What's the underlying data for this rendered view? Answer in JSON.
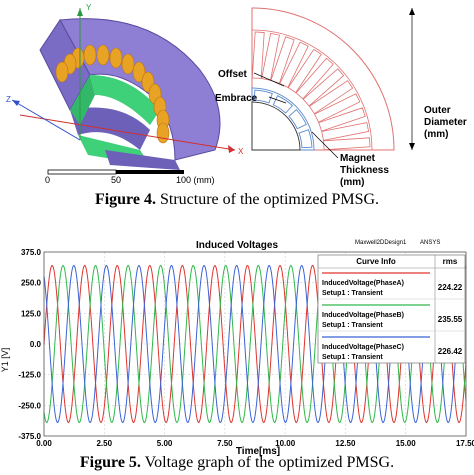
{
  "figure4": {
    "scale_ticks": [
      "0",
      "50",
      "100 (mm)"
    ],
    "axis_labels": {
      "x": "X",
      "y": "Y",
      "z": "Z"
    },
    "annotations": {
      "offset": "Offset",
      "embrace": "Embrace",
      "magnet_line1": "Magnet",
      "magnet_line2": "Thickness",
      "magnet_line3": "(mm)",
      "outer_line1": "Outer",
      "outer_line2": "Diameter",
      "outer_line3": "(mm)"
    },
    "caption_label": "Figure 4.",
    "caption_text": " Structure of the optimized PMSG."
  },
  "figure5": {
    "header_left": "Maxwell2DDesign1",
    "header_right": "ANSYS",
    "caption_label": "Figure 5.",
    "caption_text": " Voltage graph of the optimized PMSG.",
    "legend": {
      "title": "Curve Info",
      "value_header": "rms",
      "entries": [
        {
          "line1": "InducedVoltage(PhaseA)",
          "line2": "Setup1 : Transient",
          "rms": "224.22",
          "color": "#e0342e"
        },
        {
          "line1": "InducedVoltage(PhaseB)",
          "line2": "Setup1 : Transient",
          "rms": "235.55",
          "color": "#2fb84a"
        },
        {
          "line1": "InducedVoltage(PhaseC)",
          "line2": "Setup1 : Transient",
          "rms": "226.42",
          "color": "#3b63d6"
        }
      ]
    }
  },
  "chart_data": {
    "type": "line",
    "title": "Induced Voltages",
    "xlabel": "Time[ms]",
    "ylabel": "Y1 [V]",
    "xlim": [
      0,
      17.5
    ],
    "ylim": [
      -375,
      375
    ],
    "x_ticks": [
      "0.00",
      "2.50",
      "5.00",
      "7.50",
      "10.00",
      "12.50",
      "15.00",
      "17.50"
    ],
    "y_ticks": [
      "375.0",
      "250.0",
      "125.0",
      "0.0",
      "-125.0",
      "-250.0",
      "-375.0"
    ],
    "grid": true,
    "legend_position": "top-right",
    "period_ms": 1.35,
    "amplitude_v": 320,
    "series": [
      {
        "name": "InducedVoltage(PhaseA)",
        "color": "#e0342e",
        "phase_deg": 0
      },
      {
        "name": "InducedVoltage(PhaseB)",
        "color": "#2fb84a",
        "phase_deg": -120
      },
      {
        "name": "InducedVoltage(PhaseC)",
        "color": "#3b63d6",
        "phase_deg": 120
      }
    ]
  }
}
